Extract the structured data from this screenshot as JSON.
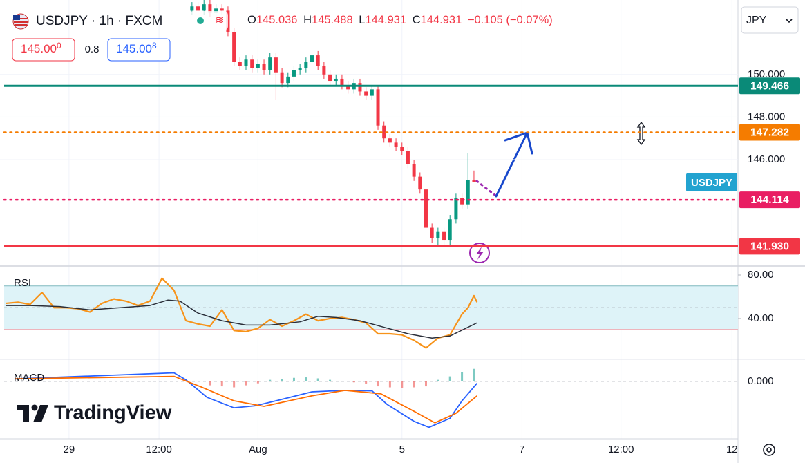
{
  "header": {
    "symbol": "USDJPY · 1h · FXCM",
    "ohlc": [
      {
        "label": "O",
        "value": "145.036"
      },
      {
        "label": "H",
        "value": "145.488"
      },
      {
        "label": "L",
        "value": "144.931"
      },
      {
        "label": "C",
        "value": "144.931"
      }
    ],
    "change": "−0.105 (−0.07%)",
    "sell": {
      "price": "145.00",
      "pip": "0"
    },
    "spread": "0.8",
    "buy": {
      "price": "145.00",
      "pip": "8"
    },
    "currency": "JPY"
  },
  "branding": "TradingView",
  "chart_data": [
    {
      "type": "candlestick",
      "symbol_label": "USDJPY",
      "up_color": "#089981",
      "down_color": "#f23645",
      "grid": true,
      "xlim": [
        0,
        246
      ],
      "xticks": [
        {
          "value": 23,
          "label": "29"
        },
        {
          "value": 53,
          "label": "12:00"
        },
        {
          "value": 86,
          "label": "Aug"
        },
        {
          "value": 134,
          "label": "5"
        },
        {
          "value": 174,
          "label": "7"
        },
        {
          "value": 207,
          "label": "12:00"
        },
        {
          "value": 244,
          "label": "12"
        }
      ],
      "ylim": [
        141,
        153.5
      ],
      "yticks": [
        {
          "value": 150,
          "label": "150.000"
        },
        {
          "value": 148,
          "label": "148.000"
        },
        {
          "value": 146,
          "label": "146.000"
        }
      ],
      "levels": [
        {
          "value": 149.466,
          "label": "149.466",
          "color": "#0a8a78",
          "style": "solid"
        },
        {
          "value": 147.282,
          "label": "147.282",
          "color": "#f57c00",
          "style": "dotted"
        },
        {
          "value": 144.114,
          "label": "144.114",
          "color": "#e91e63",
          "style": "dotted"
        },
        {
          "value": 141.93,
          "label": "141.930",
          "color": "#f23645",
          "style": "solid"
        }
      ],
      "x": [
        64,
        66,
        68,
        70,
        72,
        74,
        76,
        78,
        80,
        82,
        84,
        86,
        88,
        90,
        92,
        94,
        96,
        98,
        100,
        102,
        104,
        106,
        108,
        110,
        112,
        114,
        116,
        118,
        120,
        122,
        124,
        126,
        128,
        130,
        132,
        134,
        136,
        138,
        140,
        142,
        144,
        146,
        148,
        150,
        152,
        154,
        156,
        158
      ],
      "open": [
        153.0,
        153.2,
        153.0,
        153.3,
        152.9,
        153.1,
        153.0,
        152.0,
        150.6,
        150.4,
        150.7,
        150.3,
        150.5,
        150.2,
        150.8,
        150.1,
        149.6,
        149.9,
        150.2,
        150.3,
        150.6,
        150.9,
        150.4,
        150.0,
        149.7,
        149.8,
        149.5,
        149.3,
        149.6,
        149.2,
        149.0,
        149.3,
        147.6,
        147.0,
        146.8,
        146.6,
        146.4,
        145.8,
        145.2,
        144.6,
        142.8,
        142.3,
        142.6,
        142.2,
        143.2,
        144.2,
        143.9,
        145.036
      ],
      "high": [
        153.4,
        153.4,
        153.5,
        153.5,
        153.3,
        153.3,
        153.2,
        152.2,
        150.8,
        150.9,
        150.9,
        150.7,
        150.7,
        151.0,
        151.0,
        150.3,
        150.1,
        150.4,
        150.5,
        150.8,
        151.1,
        151.1,
        150.6,
        150.2,
        150.0,
        150.0,
        149.7,
        149.8,
        149.8,
        149.4,
        149.5,
        149.5,
        147.8,
        147.2,
        147.0,
        146.8,
        146.6,
        146.0,
        145.4,
        144.8,
        143.0,
        142.8,
        142.8,
        143.4,
        144.4,
        144.4,
        146.3,
        145.488
      ],
      "low": [
        152.8,
        152.8,
        152.8,
        152.7,
        152.7,
        152.8,
        151.8,
        150.4,
        150.2,
        150.2,
        150.1,
        150.1,
        150.0,
        150.0,
        148.8,
        149.4,
        149.4,
        149.7,
        150.0,
        150.1,
        150.4,
        150.2,
        149.8,
        149.5,
        149.5,
        149.3,
        149.1,
        149.1,
        149.0,
        148.8,
        148.8,
        147.4,
        146.8,
        146.6,
        146.4,
        146.2,
        145.6,
        145.0,
        144.4,
        142.6,
        142.1,
        141.9,
        141.9,
        142.0,
        143.0,
        143.7,
        143.7,
        144.931
      ],
      "close": [
        153.2,
        153.0,
        153.3,
        152.9,
        153.1,
        153.0,
        152.0,
        150.6,
        150.4,
        150.7,
        150.3,
        150.5,
        150.2,
        150.8,
        150.1,
        149.6,
        149.9,
        150.2,
        150.3,
        150.6,
        150.9,
        150.4,
        150.0,
        149.7,
        149.8,
        149.5,
        149.3,
        149.6,
        149.2,
        149.0,
        149.3,
        147.6,
        147.0,
        146.8,
        146.6,
        146.4,
        145.8,
        145.2,
        144.6,
        142.8,
        142.3,
        142.6,
        142.2,
        143.2,
        144.2,
        143.9,
        145.04,
        144.931
      ]
    },
    {
      "type": "line",
      "title": "RSI",
      "ylim": [
        2.5,
        88.25
      ],
      "yticks": [
        {
          "value": 80,
          "label": "80.00"
        },
        {
          "value": 40,
          "label": "40.00"
        }
      ],
      "band": [
        30,
        70
      ],
      "midline": 50,
      "series": [
        {
          "color": "#f7931a",
          "x": [
            2,
            6,
            10,
            14,
            18,
            22,
            26,
            30,
            34,
            38,
            42,
            46,
            50,
            54,
            58,
            62,
            66,
            70,
            74,
            78,
            82,
            86,
            90,
            94,
            98,
            102,
            106,
            110,
            114,
            118,
            122,
            126,
            130,
            134,
            138,
            142,
            146,
            150,
            154,
            156,
            158,
            159
          ],
          "values": [
            54,
            55,
            53,
            64,
            50,
            50,
            49,
            46,
            54,
            58,
            56,
            52,
            56,
            77,
            66,
            38,
            35,
            33,
            48,
            29,
            28,
            31,
            39,
            33,
            38,
            44,
            38,
            40,
            41,
            39,
            36,
            26,
            26,
            25,
            20,
            13,
            22,
            25,
            44,
            50,
            61,
            55
          ]
        },
        {
          "color": "#2a2e39",
          "x": [
            2,
            10,
            20,
            30,
            40,
            50,
            56,
            60,
            66,
            74,
            82,
            90,
            100,
            106,
            112,
            120,
            128,
            136,
            144,
            150,
            159
          ],
          "values": [
            52,
            52,
            51,
            48,
            50,
            52,
            57,
            56,
            45,
            38,
            34,
            34,
            37,
            42,
            41,
            38,
            32,
            26,
            22,
            24,
            36
          ]
        }
      ]
    },
    {
      "type": "macd",
      "title": "MACD",
      "ylim": [
        -1.15,
        0.44
      ],
      "yticks": [
        {
          "value": 0,
          "label": "0.000"
        }
      ],
      "histogram": {
        "up_color": "#26a69a",
        "down_color": "#ef5350",
        "x": [
          70,
          74,
          78,
          82,
          86,
          90,
          94,
          98,
          102,
          106,
          110,
          114,
          118,
          122,
          126,
          130,
          134,
          138,
          142,
          146,
          150,
          154,
          158
        ],
        "values": [
          -0.08,
          -0.1,
          -0.12,
          -0.08,
          -0.04,
          0.03,
          0.05,
          0.07,
          0.08,
          0.06,
          0.03,
          0.01,
          -0.02,
          -0.05,
          -0.1,
          -0.12,
          -0.13,
          -0.12,
          -0.1,
          0.03,
          0.1,
          0.18,
          0.25
        ]
      },
      "series": [
        {
          "color": "#2962ff",
          "x": [
            5,
            58,
            62,
            69,
            78,
            85,
            92,
            104,
            115,
            124,
            129,
            138,
            143,
            150,
            154,
            159
          ],
          "values": [
            0.05,
            0.17,
            0.03,
            -0.32,
            -0.53,
            -0.49,
            -0.39,
            -0.21,
            -0.18,
            -0.19,
            -0.46,
            -0.8,
            -0.92,
            -0.74,
            -0.39,
            -0.04
          ]
        },
        {
          "color": "#ff6d00",
          "x": [
            5,
            58,
            67,
            78,
            88,
            104,
            115,
            127,
            138,
            145,
            152,
            159
          ],
          "values": [
            0.05,
            0.1,
            -0.11,
            -0.39,
            -0.5,
            -0.29,
            -0.18,
            -0.25,
            -0.6,
            -0.83,
            -0.64,
            -0.29
          ]
        }
      ]
    }
  ]
}
